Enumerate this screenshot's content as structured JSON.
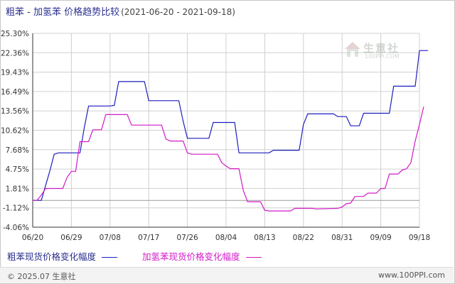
{
  "header": {
    "title": "粗苯 - 加氢苯 价格趋势比较",
    "date_range": "(2021-06-20 - 2021-09-18)"
  },
  "legend": {
    "series_a": "粗苯现货价格变化幅度",
    "series_b": "加氢苯现货价格变化幅度"
  },
  "footer": {
    "copyright": "© 2025.07 生意社",
    "site": "www.100PPI.com"
  },
  "watermark": {
    "brand": "生意社",
    "sub": "100PPI.COM"
  },
  "colors": {
    "series_a": "#1f1fbf",
    "series_b": "#d21ac8",
    "grid": "#d0d0d0",
    "axis": "#333333"
  },
  "chart_data": {
    "type": "line",
    "title": "粗苯 - 加氢苯 价格趋势比较",
    "x_tick_labels": [
      "06/20",
      "06/29",
      "07/08",
      "07/17",
      "07/26",
      "08/04",
      "08/13",
      "08/22",
      "08/31",
      "09/09",
      "09/18"
    ],
    "y_tick_labels": [
      "25.30%",
      "22.36%",
      "19.43%",
      "16.49%",
      "13.56%",
      "10.62%",
      "7.68%",
      "4.75%",
      "1.81%",
      "-1.12%",
      "-4.06%"
    ],
    "ylim": [
      -4.06,
      25.3
    ],
    "x_range_days": [
      0,
      90
    ],
    "grid": true,
    "legend_position": "bottom-left",
    "series": [
      {
        "name": "粗苯现货价格变化幅度",
        "points": [
          [
            0,
            0
          ],
          [
            2,
            0
          ],
          [
            4,
            4.5
          ],
          [
            5,
            7
          ],
          [
            6,
            7.2
          ],
          [
            10,
            7.2
          ],
          [
            11,
            7.2
          ],
          [
            12,
            11
          ],
          [
            13,
            14.3
          ],
          [
            18,
            14.3
          ],
          [
            19,
            14.4
          ],
          [
            20,
            18
          ],
          [
            26,
            18
          ],
          [
            27,
            15.1
          ],
          [
            33,
            15.1
          ],
          [
            34,
            15.1
          ],
          [
            35,
            12
          ],
          [
            36,
            9.4
          ],
          [
            41,
            9.4
          ],
          [
            42,
            11.8
          ],
          [
            47,
            11.8
          ],
          [
            48,
            7.2
          ],
          [
            55,
            7.2
          ],
          [
            56,
            7.6
          ],
          [
            62,
            7.6
          ],
          [
            63,
            11.5
          ],
          [
            64,
            13.1
          ],
          [
            70,
            13.1
          ],
          [
            71,
            12.7
          ],
          [
            73,
            12.7
          ],
          [
            74,
            11.3
          ],
          [
            76,
            11.3
          ],
          [
            77,
            13.2
          ],
          [
            83,
            13.2
          ],
          [
            84,
            17.3
          ],
          [
            89,
            17.3
          ],
          [
            90,
            22.7
          ],
          [
            92,
            22.7
          ]
        ]
      },
      {
        "name": "加氢苯现货价格变化幅度",
        "points": [
          [
            0,
            0
          ],
          [
            1,
            0
          ],
          [
            2,
            0.8
          ],
          [
            3,
            1.8
          ],
          [
            7,
            1.8
          ],
          [
            8,
            3.5
          ],
          [
            9,
            4.4
          ],
          [
            10,
            4.4
          ],
          [
            11,
            8.9
          ],
          [
            13,
            8.9
          ],
          [
            14,
            10.7
          ],
          [
            16,
            10.7
          ],
          [
            17,
            13
          ],
          [
            22,
            13
          ],
          [
            23,
            11.4
          ],
          [
            30,
            11.4
          ],
          [
            31,
            9.3
          ],
          [
            32,
            9
          ],
          [
            35,
            9
          ],
          [
            36,
            7.2
          ],
          [
            37,
            7
          ],
          [
            43,
            7
          ],
          [
            44,
            5.7
          ],
          [
            45,
            5.2
          ],
          [
            46,
            4.8
          ],
          [
            48,
            4.8
          ],
          [
            49,
            1.5
          ],
          [
            50,
            -0.2
          ],
          [
            53,
            -0.2
          ],
          [
            54,
            -1.5
          ],
          [
            55,
            -1.6
          ],
          [
            60,
            -1.6
          ],
          [
            61,
            -1.2
          ],
          [
            65,
            -1.2
          ],
          [
            66,
            -1.3
          ],
          [
            71,
            -1.2
          ],
          [
            72,
            -1
          ],
          [
            73,
            -0.5
          ],
          [
            74,
            -0.4
          ],
          [
            75,
            0.6
          ],
          [
            77,
            0.6
          ],
          [
            78,
            1.1
          ],
          [
            80,
            1.1
          ],
          [
            81,
            1.8
          ],
          [
            82,
            1.8
          ],
          [
            83,
            4
          ],
          [
            85,
            4
          ],
          [
            86,
            4.6
          ],
          [
            87,
            4.8
          ],
          [
            88,
            5.7
          ],
          [
            89,
            9
          ],
          [
            90,
            11.5
          ],
          [
            91,
            14.2
          ]
        ]
      }
    ]
  }
}
